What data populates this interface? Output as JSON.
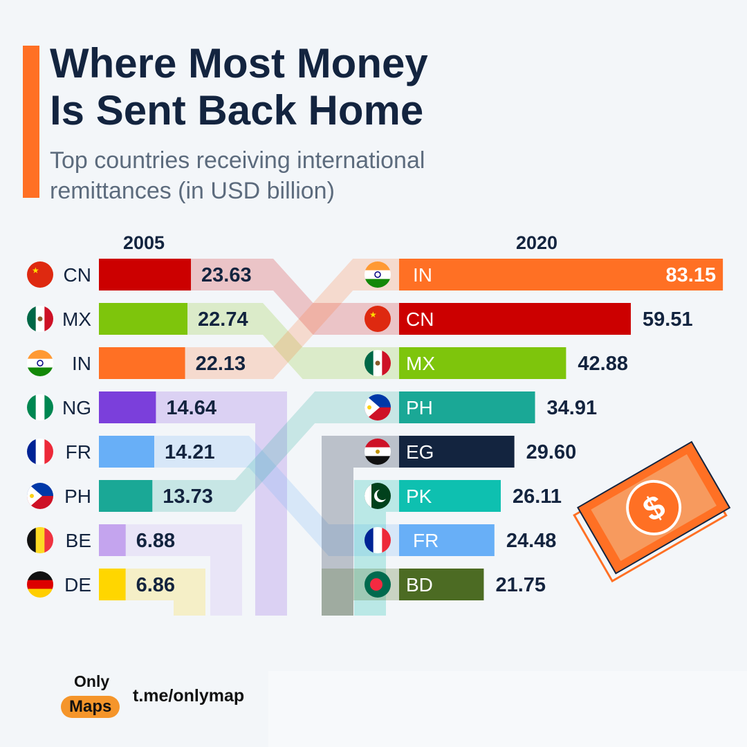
{
  "header": {
    "title_line1": "Where Most Money",
    "title_line2": "Is Sent Back Home",
    "subtitle": "Top countries receiving international remittances (in USD billion)"
  },
  "chart_data": {
    "type": "bar",
    "title": "Where Most Money Is Sent Back Home",
    "subtitle": "Top countries receiving international remittances (in USD billion)",
    "unit": "USD billion",
    "series": [
      {
        "name": "2005",
        "categories": [
          "CN",
          "MX",
          "IN",
          "NG",
          "FR",
          "PH",
          "BE",
          "DE"
        ],
        "values": [
          23.63,
          22.74,
          22.13,
          14.64,
          14.21,
          13.73,
          6.88,
          6.86
        ],
        "labels": [
          "23.63",
          "22.74",
          "22.13",
          "14.64",
          "14.21",
          "13.73",
          "6.88",
          "6.86"
        ]
      },
      {
        "name": "2020",
        "categories": [
          "IN",
          "CN",
          "MX",
          "PH",
          "EG",
          "PK",
          "FR",
          "BD"
        ],
        "values": [
          83.15,
          59.51,
          42.88,
          34.91,
          29.6,
          26.11,
          24.48,
          21.75
        ],
        "labels": [
          "83.15",
          "59.51",
          "42.88",
          "34.91",
          "29.60",
          "26.11",
          "24.48",
          "21.75"
        ]
      }
    ],
    "colors": {
      "CN": "#cc0000",
      "MX": "#7ec50c",
      "IN": "#ff7024",
      "NG": "#7b3fdb",
      "FR": "#68aff7",
      "PH": "#1aa896",
      "BE": "#c4a4ee",
      "DE": "#ffd600",
      "EG": "#13243f",
      "PK": "#0ec0b0",
      "BD": "#4c6b23"
    },
    "xlabel": "",
    "ylabel": ""
  },
  "footer": {
    "brand_top": "Only",
    "brand_bottom": "Maps",
    "link": "t.me/onlymap"
  }
}
